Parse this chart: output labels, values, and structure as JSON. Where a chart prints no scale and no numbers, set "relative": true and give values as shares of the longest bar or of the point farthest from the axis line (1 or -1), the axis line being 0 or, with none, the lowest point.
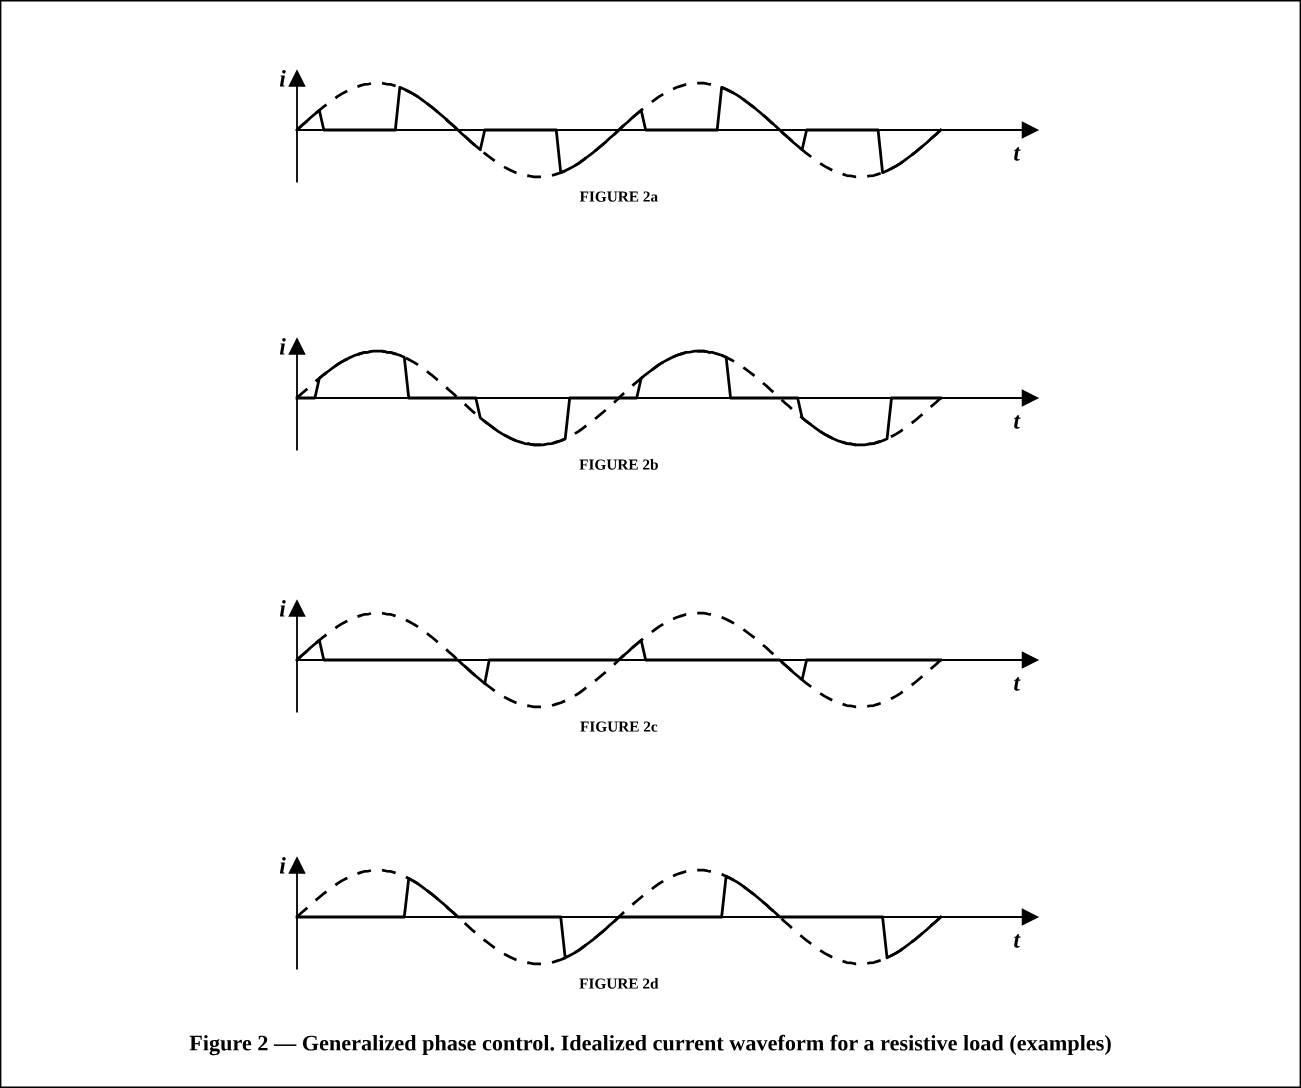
{
  "chart_data": [
    {
      "type": "line",
      "relative": true,
      "title": "FIGURE 2a",
      "xlabel": "t",
      "ylabel": "i",
      "legend": false,
      "grid": false,
      "categories": [
        null,
        null,
        null,
        null,
        null,
        null,
        null,
        null,
        null,
        null,
        null,
        null,
        null,
        null,
        null,
        null,
        null,
        null,
        null,
        null,
        null,
        null,
        null,
        null,
        null,
        null,
        null,
        null,
        null,
        null,
        null,
        null,
        null,
        null,
        null,
        null,
        null,
        null,
        null,
        null,
        null,
        null,
        null,
        null,
        null,
        null,
        null,
        null,
        null,
        null,
        null,
        null,
        null,
        null,
        null,
        null,
        null,
        null,
        null,
        null,
        null,
        null,
        null,
        null,
        null,
        null,
        null,
        null,
        null,
        null,
        null,
        null,
        null,
        null,
        null,
        null,
        null,
        null,
        null,
        null,
        null,
        null,
        null,
        null,
        null,
        null,
        null,
        null,
        null,
        null,
        null,
        null,
        null,
        null,
        null,
        null,
        null,
        null,
        null,
        null,
        null,
        null,
        null,
        null,
        null,
        null,
        null,
        null,
        null,
        null,
        null,
        null,
        null,
        null,
        null,
        null,
        null,
        null,
        null,
        null,
        null,
        null,
        null,
        null,
        null,
        null,
        null,
        null,
        null,
        null,
        null,
        null,
        null,
        null,
        null,
        null,
        null,
        null,
        null,
        null,
        null,
        null,
        null,
        null,
        null
      ],
      "series": [
        {
          "color": "#000000",
          "line_style": "dashed",
          "values": [
            0,
            0.09,
            0.17,
            0.26,
            0.34,
            0.42,
            0.5,
            0.57,
            0.64,
            0.71,
            0.77,
            0.82,
            0.87,
            0.91,
            0.94,
            0.97,
            0.98,
            1,
            1,
            1,
            0.98,
            0.97,
            0.94,
            0.91,
            0.87,
            0.82,
            0.77,
            0.71,
            0.64,
            0.57,
            0.5,
            0.42,
            0.34,
            0.26,
            0.17,
            0.09,
            0,
            -0.09,
            -0.17,
            -0.26,
            -0.34,
            -0.42,
            -0.5,
            -0.57,
            -0.64,
            -0.71,
            -0.77,
            -0.82,
            -0.87,
            -0.91,
            -0.94,
            -0.97,
            -0.98,
            -1,
            -1,
            -1,
            -0.98,
            -0.97,
            -0.94,
            -0.91,
            -0.87,
            -0.82,
            -0.77,
            -0.71,
            -0.64,
            -0.57,
            -0.5,
            -0.42,
            -0.34,
            -0.26,
            -0.17,
            -0.09,
            0,
            0.09,
            0.17,
            0.26,
            0.34,
            0.42,
            0.5,
            0.57,
            0.64,
            0.71,
            0.77,
            0.82,
            0.87,
            0.91,
            0.94,
            0.97,
            0.98,
            1,
            1,
            1,
            0.98,
            0.97,
            0.94,
            0.91,
            0.87,
            0.82,
            0.77,
            0.71,
            0.64,
            0.57,
            0.5,
            0.42,
            0.34,
            0.26,
            0.17,
            0.09,
            0,
            -0.09,
            -0.17,
            -0.26,
            -0.34,
            -0.42,
            -0.5,
            -0.57,
            -0.64,
            -0.71,
            -0.77,
            -0.82,
            -0.87,
            -0.91,
            -0.94,
            -0.97,
            -0.98,
            -1,
            -1,
            -1,
            -0.98,
            -0.97,
            -0.94,
            -0.91,
            -0.87,
            -0.82,
            -0.77,
            -0.71,
            -0.64,
            -0.57,
            -0.5,
            -0.42,
            -0.34,
            -0.26,
            -0.17,
            -0.09,
            0
          ]
        },
        {
          "color": "#000000",
          "line_style": "solid",
          "values": [
            0,
            0.09,
            0.17,
            0.26,
            0.34,
            0.42,
            0,
            0,
            0,
            0,
            0,
            0,
            0,
            0,
            0,
            0,
            0,
            0,
            0,
            0,
            0,
            0,
            0,
            0.91,
            0.87,
            0.82,
            0.77,
            0.71,
            0.64,
            0.57,
            0.5,
            0.42,
            0.34,
            0.26,
            0.17,
            0.09,
            0,
            -0.09,
            -0.17,
            -0.26,
            -0.34,
            -0.42,
            0,
            0,
            0,
            0,
            0,
            0,
            0,
            0,
            0,
            0,
            0,
            0,
            0,
            0,
            0,
            0,
            0,
            -0.91,
            -0.87,
            -0.82,
            -0.77,
            -0.71,
            -0.64,
            -0.57,
            -0.5,
            -0.42,
            -0.34,
            -0.26,
            -0.17,
            -0.09,
            0,
            0.09,
            0.17,
            0.26,
            0.34,
            0.42,
            0,
            0,
            0,
            0,
            0,
            0,
            0,
            0,
            0,
            0,
            0,
            0,
            0,
            0,
            0,
            0,
            0,
            0.91,
            0.87,
            0.82,
            0.77,
            0.71,
            0.64,
            0.57,
            0.5,
            0.42,
            0.34,
            0.26,
            0.17,
            0.09,
            0,
            -0.09,
            -0.17,
            -0.26,
            -0.34,
            -0.42,
            0,
            0,
            0,
            0,
            0,
            0,
            0,
            0,
            0,
            0,
            0,
            0,
            0,
            0,
            0,
            0,
            0,
            -0.91,
            -0.87,
            -0.82,
            -0.77,
            -0.71,
            -0.64,
            -0.57,
            -0.5,
            -0.42,
            -0.34,
            -0.26,
            -0.17,
            -0.09,
            0
          ]
        }
      ]
    },
    {
      "type": "line",
      "relative": true,
      "title": "FIGURE 2b",
      "xlabel": "t",
      "ylabel": "i",
      "legend": false,
      "grid": false,
      "categories": [
        null,
        null,
        null,
        null,
        null,
        null,
        null,
        null,
        null,
        null,
        null,
        null,
        null,
        null,
        null,
        null,
        null,
        null,
        null,
        null,
        null,
        null,
        null,
        null,
        null,
        null,
        null,
        null,
        null,
        null,
        null,
        null,
        null,
        null,
        null,
        null,
        null,
        null,
        null,
        null,
        null,
        null,
        null,
        null,
        null,
        null,
        null,
        null,
        null,
        null,
        null,
        null,
        null,
        null,
        null,
        null,
        null,
        null,
        null,
        null,
        null,
        null,
        null,
        null,
        null,
        null,
        null,
        null,
        null,
        null,
        null,
        null,
        null,
        null,
        null,
        null,
        null,
        null,
        null,
        null,
        null,
        null,
        null,
        null,
        null,
        null,
        null,
        null,
        null,
        null,
        null,
        null,
        null,
        null,
        null,
        null,
        null,
        null,
        null,
        null,
        null,
        null,
        null,
        null,
        null,
        null,
        null,
        null,
        null,
        null,
        null,
        null,
        null,
        null,
        null,
        null,
        null,
        null,
        null,
        null,
        null,
        null,
        null,
        null,
        null,
        null,
        null,
        null,
        null,
        null,
        null,
        null,
        null,
        null,
        null,
        null,
        null,
        null,
        null,
        null,
        null,
        null,
        null,
        null,
        null
      ],
      "series": [
        {
          "color": "#000000",
          "line_style": "dashed",
          "values": [
            0,
            0.09,
            0.17,
            0.26,
            0.34,
            0.42,
            0.5,
            0.57,
            0.64,
            0.71,
            0.77,
            0.82,
            0.87,
            0.91,
            0.94,
            0.97,
            0.98,
            1,
            1,
            1,
            0.98,
            0.97,
            0.94,
            0.91,
            0.87,
            0.82,
            0.77,
            0.71,
            0.64,
            0.57,
            0.5,
            0.42,
            0.34,
            0.26,
            0.17,
            0.09,
            0,
            -0.09,
            -0.17,
            -0.26,
            -0.34,
            -0.42,
            -0.5,
            -0.57,
            -0.64,
            -0.71,
            -0.77,
            -0.82,
            -0.87,
            -0.91,
            -0.94,
            -0.97,
            -0.98,
            -1,
            -1,
            -1,
            -0.98,
            -0.97,
            -0.94,
            -0.91,
            -0.87,
            -0.82,
            -0.77,
            -0.71,
            -0.64,
            -0.57,
            -0.5,
            -0.42,
            -0.34,
            -0.26,
            -0.17,
            -0.09,
            0,
            0.09,
            0.17,
            0.26,
            0.34,
            0.42,
            0.5,
            0.57,
            0.64,
            0.71,
            0.77,
            0.82,
            0.87,
            0.91,
            0.94,
            0.97,
            0.98,
            1,
            1,
            1,
            0.98,
            0.97,
            0.94,
            0.91,
            0.87,
            0.82,
            0.77,
            0.71,
            0.64,
            0.57,
            0.5,
            0.42,
            0.34,
            0.26,
            0.17,
            0.09,
            0,
            -0.09,
            -0.17,
            -0.26,
            -0.34,
            -0.42,
            -0.5,
            -0.57,
            -0.64,
            -0.71,
            -0.77,
            -0.82,
            -0.87,
            -0.91,
            -0.94,
            -0.97,
            -0.98,
            -1,
            -1,
            -1,
            -0.98,
            -0.97,
            -0.94,
            -0.91,
            -0.87,
            -0.82,
            -0.77,
            -0.71,
            -0.64,
            -0.57,
            -0.5,
            -0.42,
            -0.34,
            -0.26,
            -0.17,
            -0.09,
            0
          ]
        },
        {
          "color": "#000000",
          "line_style": "solid",
          "values": [
            0,
            0,
            0,
            0,
            0,
            0.42,
            0.5,
            0.57,
            0.64,
            0.71,
            0.77,
            0.82,
            0.87,
            0.91,
            0.94,
            0.97,
            0.98,
            1,
            1,
            1,
            0.98,
            0.97,
            0.94,
            0.91,
            0.87,
            0,
            0,
            0,
            0,
            0,
            0,
            0,
            0,
            0,
            0,
            0,
            0,
            0,
            0,
            0,
            0,
            -0.42,
            -0.5,
            -0.57,
            -0.64,
            -0.71,
            -0.77,
            -0.82,
            -0.87,
            -0.91,
            -0.94,
            -0.97,
            -0.98,
            -1,
            -1,
            -1,
            -0.98,
            -0.97,
            -0.94,
            -0.91,
            -0.87,
            0,
            0,
            0,
            0,
            0,
            0,
            0,
            0,
            0,
            0,
            0,
            0,
            0,
            0,
            0,
            0,
            0.42,
            0.5,
            0.57,
            0.64,
            0.71,
            0.77,
            0.82,
            0.87,
            0.91,
            0.94,
            0.97,
            0.98,
            1,
            1,
            1,
            0.98,
            0.97,
            0.94,
            0.91,
            0.87,
            0,
            0,
            0,
            0,
            0,
            0,
            0,
            0,
            0,
            0,
            0,
            0,
            0,
            0,
            0,
            0,
            -0.42,
            -0.5,
            -0.57,
            -0.64,
            -0.71,
            -0.77,
            -0.82,
            -0.87,
            -0.91,
            -0.94,
            -0.97,
            -0.98,
            -1,
            -1,
            -1,
            -0.98,
            -0.97,
            -0.94,
            -0.91,
            -0.87,
            0,
            0,
            0,
            0,
            0,
            0,
            0,
            0,
            0,
            0,
            0,
            0
          ]
        }
      ]
    },
    {
      "type": "line",
      "relative": true,
      "title": "FIGURE 2c",
      "xlabel": "t",
      "ylabel": "i",
      "legend": false,
      "grid": false,
      "categories": [
        null,
        null,
        null,
        null,
        null,
        null,
        null,
        null,
        null,
        null,
        null,
        null,
        null,
        null,
        null,
        null,
        null,
        null,
        null,
        null,
        null,
        null,
        null,
        null,
        null,
        null,
        null,
        null,
        null,
        null,
        null,
        null,
        null,
        null,
        null,
        null,
        null,
        null,
        null,
        null,
        null,
        null,
        null,
        null,
        null,
        null,
        null,
        null,
        null,
        null,
        null,
        null,
        null,
        null,
        null,
        null,
        null,
        null,
        null,
        null,
        null,
        null,
        null,
        null,
        null,
        null,
        null,
        null,
        null,
        null,
        null,
        null,
        null,
        null,
        null,
        null,
        null,
        null,
        null,
        null,
        null,
        null,
        null,
        null,
        null,
        null,
        null,
        null,
        null,
        null,
        null,
        null,
        null,
        null,
        null,
        null,
        null,
        null,
        null,
        null,
        null,
        null,
        null,
        null,
        null,
        null,
        null,
        null,
        null,
        null,
        null,
        null,
        null,
        null,
        null,
        null,
        null,
        null,
        null,
        null,
        null,
        null,
        null,
        null,
        null,
        null,
        null,
        null,
        null,
        null,
        null,
        null,
        null,
        null,
        null,
        null,
        null,
        null,
        null,
        null,
        null,
        null,
        null,
        null,
        null
      ],
      "series": [
        {
          "color": "#000000",
          "line_style": "dashed",
          "values": [
            0,
            0.09,
            0.17,
            0.26,
            0.34,
            0.42,
            0.5,
            0.57,
            0.64,
            0.71,
            0.77,
            0.82,
            0.87,
            0.91,
            0.94,
            0.97,
            0.98,
            1,
            1,
            1,
            0.98,
            0.97,
            0.94,
            0.91,
            0.87,
            0.82,
            0.77,
            0.71,
            0.64,
            0.57,
            0.5,
            0.42,
            0.34,
            0.26,
            0.17,
            0.09,
            0,
            -0.09,
            -0.17,
            -0.26,
            -0.34,
            -0.42,
            -0.5,
            -0.57,
            -0.64,
            -0.71,
            -0.77,
            -0.82,
            -0.87,
            -0.91,
            -0.94,
            -0.97,
            -0.98,
            -1,
            -1,
            -1,
            -0.98,
            -0.97,
            -0.94,
            -0.91,
            -0.87,
            -0.82,
            -0.77,
            -0.71,
            -0.64,
            -0.57,
            -0.5,
            -0.42,
            -0.34,
            -0.26,
            -0.17,
            -0.09,
            0,
            0.09,
            0.17,
            0.26,
            0.34,
            0.42,
            0.5,
            0.57,
            0.64,
            0.71,
            0.77,
            0.82,
            0.87,
            0.91,
            0.94,
            0.97,
            0.98,
            1,
            1,
            1,
            0.98,
            0.97,
            0.94,
            0.91,
            0.87,
            0.82,
            0.77,
            0.71,
            0.64,
            0.57,
            0.5,
            0.42,
            0.34,
            0.26,
            0.17,
            0.09,
            0,
            -0.09,
            -0.17,
            -0.26,
            -0.34,
            -0.42,
            -0.5,
            -0.57,
            -0.64,
            -0.71,
            -0.77,
            -0.82,
            -0.87,
            -0.91,
            -0.94,
            -0.97,
            -0.98,
            -1,
            -1,
            -1,
            -0.98,
            -0.97,
            -0.94,
            -0.91,
            -0.87,
            -0.82,
            -0.77,
            -0.71,
            -0.64,
            -0.57,
            -0.5,
            -0.42,
            -0.34,
            -0.26,
            -0.17,
            -0.09,
            0
          ]
        },
        {
          "color": "#000000",
          "line_style": "solid",
          "values": [
            0,
            0.09,
            0.17,
            0.26,
            0.34,
            0.42,
            0,
            0,
            0,
            0,
            0,
            0,
            0,
            0,
            0,
            0,
            0,
            0,
            0,
            0,
            0,
            0,
            0,
            0,
            0,
            0,
            0,
            0,
            0,
            0,
            0,
            0,
            0,
            0,
            0,
            0,
            0,
            -0.09,
            -0.17,
            -0.26,
            -0.34,
            -0.42,
            -0.5,
            0,
            0,
            0,
            0,
            0,
            0,
            0,
            0,
            0,
            0,
            0,
            0,
            0,
            0,
            0,
            0,
            0,
            0,
            0,
            0,
            0,
            0,
            0,
            0,
            0,
            0,
            0,
            0,
            0,
            0,
            0.09,
            0.17,
            0.26,
            0.34,
            0.42,
            0,
            0,
            0,
            0,
            0,
            0,
            0,
            0,
            0,
            0,
            0,
            0,
            0,
            0,
            0,
            0,
            0,
            0,
            0,
            0,
            0,
            0,
            0,
            0,
            0,
            0,
            0,
            0,
            0,
            0,
            0,
            -0.09,
            -0.17,
            -0.26,
            -0.34,
            -0.42,
            0,
            0,
            0,
            0,
            0,
            0,
            0,
            0,
            0,
            0,
            0,
            0,
            0,
            0,
            0,
            0,
            0,
            0,
            0,
            0,
            0,
            0,
            0,
            0,
            0,
            0,
            0,
            0,
            0,
            0,
            0
          ]
        }
      ]
    },
    {
      "type": "line",
      "relative": true,
      "title": "FIGURE 2d",
      "xlabel": "t",
      "ylabel": "i",
      "legend": false,
      "grid": false,
      "annotations": [
        "Figure 2 — Generalized phase control. Idealized current waveform for a resistive load (examples)"
      ],
      "categories": [
        null,
        null,
        null,
        null,
        null,
        null,
        null,
        null,
        null,
        null,
        null,
        null,
        null,
        null,
        null,
        null,
        null,
        null,
        null,
        null,
        null,
        null,
        null,
        null,
        null,
        null,
        null,
        null,
        null,
        null,
        null,
        null,
        null,
        null,
        null,
        null,
        null,
        null,
        null,
        null,
        null,
        null,
        null,
        null,
        null,
        null,
        null,
        null,
        null,
        null,
        null,
        null,
        null,
        null,
        null,
        null,
        null,
        null,
        null,
        null,
        null,
        null,
        null,
        null,
        null,
        null,
        null,
        null,
        null,
        null,
        null,
        null,
        null,
        null,
        null,
        null,
        null,
        null,
        null,
        null,
        null,
        null,
        null,
        null,
        null,
        null,
        null,
        null,
        null,
        null,
        null,
        null,
        null,
        null,
        null,
        null,
        null,
        null,
        null,
        null,
        null,
        null,
        null,
        null,
        null,
        null,
        null,
        null,
        null,
        null,
        null,
        null,
        null,
        null,
        null,
        null,
        null,
        null,
        null,
        null,
        null,
        null,
        null,
        null,
        null,
        null,
        null,
        null,
        null,
        null,
        null,
        null,
        null,
        null,
        null,
        null,
        null,
        null,
        null,
        null,
        null,
        null,
        null,
        null,
        null
      ],
      "series": [
        {
          "color": "#000000",
          "line_style": "dashed",
          "values": [
            0,
            0.09,
            0.17,
            0.26,
            0.34,
            0.42,
            0.5,
            0.57,
            0.64,
            0.71,
            0.77,
            0.82,
            0.87,
            0.91,
            0.94,
            0.97,
            0.98,
            1,
            1,
            1,
            0.98,
            0.97,
            0.94,
            0.91,
            0.87,
            0.82,
            0.77,
            0.71,
            0.64,
            0.57,
            0.5,
            0.42,
            0.34,
            0.26,
            0.17,
            0.09,
            0,
            -0.09,
            -0.17,
            -0.26,
            -0.34,
            -0.42,
            -0.5,
            -0.57,
            -0.64,
            -0.71,
            -0.77,
            -0.82,
            -0.87,
            -0.91,
            -0.94,
            -0.97,
            -0.98,
            -1,
            -1,
            -1,
            -0.98,
            -0.97,
            -0.94,
            -0.91,
            -0.87,
            -0.82,
            -0.77,
            -0.71,
            -0.64,
            -0.57,
            -0.5,
            -0.42,
            -0.34,
            -0.26,
            -0.17,
            -0.09,
            0,
            0.09,
            0.17,
            0.26,
            0.34,
            0.42,
            0.5,
            0.57,
            0.64,
            0.71,
            0.77,
            0.82,
            0.87,
            0.91,
            0.94,
            0.97,
            0.98,
            1,
            1,
            1,
            0.98,
            0.97,
            0.94,
            0.91,
            0.87,
            0.82,
            0.77,
            0.71,
            0.64,
            0.57,
            0.5,
            0.42,
            0.34,
            0.26,
            0.17,
            0.09,
            0,
            -0.09,
            -0.17,
            -0.26,
            -0.34,
            -0.42,
            -0.5,
            -0.57,
            -0.64,
            -0.71,
            -0.77,
            -0.82,
            -0.87,
            -0.91,
            -0.94,
            -0.97,
            -0.98,
            -1,
            -1,
            -1,
            -0.98,
            -0.97,
            -0.94,
            -0.91,
            -0.87,
            -0.82,
            -0.77,
            -0.71,
            -0.64,
            -0.57,
            -0.5,
            -0.42,
            -0.34,
            -0.26,
            -0.17,
            -0.09,
            0
          ]
        },
        {
          "color": "#000000",
          "line_style": "solid",
          "values": [
            0,
            0,
            0,
            0,
            0,
            0,
            0,
            0,
            0,
            0,
            0,
            0,
            0,
            0,
            0,
            0,
            0,
            0,
            0,
            0,
            0,
            0,
            0,
            0,
            0,
            0.82,
            0.77,
            0.71,
            0.64,
            0.57,
            0.5,
            0.42,
            0.34,
            0.26,
            0.17,
            0.09,
            0,
            0,
            0,
            0,
            0,
            0,
            0,
            0,
            0,
            0,
            0,
            0,
            0,
            0,
            0,
            0,
            0,
            0,
            0,
            0,
            0,
            0,
            0,
            0,
            -0.87,
            -0.82,
            -0.77,
            -0.71,
            -0.64,
            -0.57,
            -0.5,
            -0.42,
            -0.34,
            -0.26,
            -0.17,
            -0.09,
            0,
            0,
            0,
            0,
            0,
            0,
            0,
            0,
            0,
            0,
            0,
            0,
            0,
            0,
            0,
            0,
            0,
            0,
            0,
            0,
            0,
            0,
            0,
            0,
            0.87,
            0.82,
            0.77,
            0.71,
            0.64,
            0.57,
            0.5,
            0.42,
            0.34,
            0.26,
            0.17,
            0.09,
            0,
            0,
            0,
            0,
            0,
            0,
            0,
            0,
            0,
            0,
            0,
            0,
            0,
            0,
            0,
            0,
            0,
            0,
            0,
            0,
            0,
            0,
            0,
            0,
            -0.87,
            -0.82,
            -0.77,
            -0.71,
            -0.64,
            -0.57,
            -0.5,
            -0.42,
            -0.34,
            -0.26,
            -0.17,
            -0.09,
            0
          ]
        }
      ]
    }
  ]
}
